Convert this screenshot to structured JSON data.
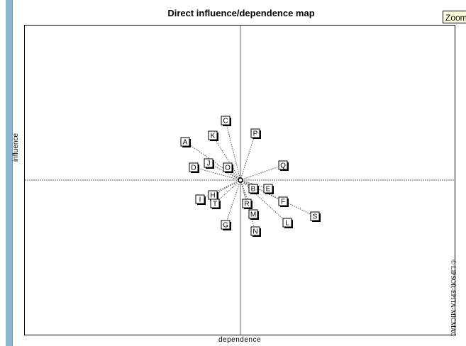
{
  "title": "Direct influence/dependence map",
  "zoom_button": "Zoom",
  "xlabel": "dependence",
  "ylabel": "influence",
  "watermark": "© LIPSOR-EPITA-MICMAC",
  "colors": {
    "left_bar": "#8eb4cf",
    "zoom_bg": "#ffffe1",
    "axis": "#666666",
    "link": "#555555"
  },
  "chart_data": {
    "type": "scatter",
    "title": "Direct influence/dependence map",
    "xlabel": "dependence",
    "ylabel": "influence",
    "xlim": [
      -10,
      10
    ],
    "ylim": [
      -10,
      10
    ],
    "grid": false,
    "center_mark": "circle",
    "connect_to_center": true,
    "points": [
      {
        "label": "A",
        "x": -2.6,
        "y": 1.8
      },
      {
        "label": "B",
        "x": 0.6,
        "y": -0.4
      },
      {
        "label": "C",
        "x": -0.7,
        "y": 2.8
      },
      {
        "label": "D",
        "x": -2.2,
        "y": 0.6
      },
      {
        "label": "E",
        "x": 1.3,
        "y": -0.4
      },
      {
        "label": "F",
        "x": 2.0,
        "y": -1.0
      },
      {
        "label": "G",
        "x": -0.7,
        "y": -2.1
      },
      {
        "label": "H",
        "x": -1.3,
        "y": -0.7
      },
      {
        "label": "I",
        "x": -1.9,
        "y": -0.9
      },
      {
        "label": "J",
        "x": -1.5,
        "y": 0.8
      },
      {
        "label": "K",
        "x": -1.3,
        "y": 2.1
      },
      {
        "label": "L",
        "x": 2.2,
        "y": -2.0
      },
      {
        "label": "M",
        "x": 0.6,
        "y": -1.6
      },
      {
        "label": "N",
        "x": 0.7,
        "y": -2.4
      },
      {
        "label": "O",
        "x": -0.6,
        "y": 0.6
      },
      {
        "label": "P",
        "x": 0.7,
        "y": 2.2
      },
      {
        "label": "Q",
        "x": 2.0,
        "y": 0.7
      },
      {
        "label": "R",
        "x": 0.3,
        "y": -1.1
      },
      {
        "label": "S",
        "x": 3.5,
        "y": -1.7
      },
      {
        "label": "T",
        "x": -1.2,
        "y": -1.1
      }
    ]
  }
}
